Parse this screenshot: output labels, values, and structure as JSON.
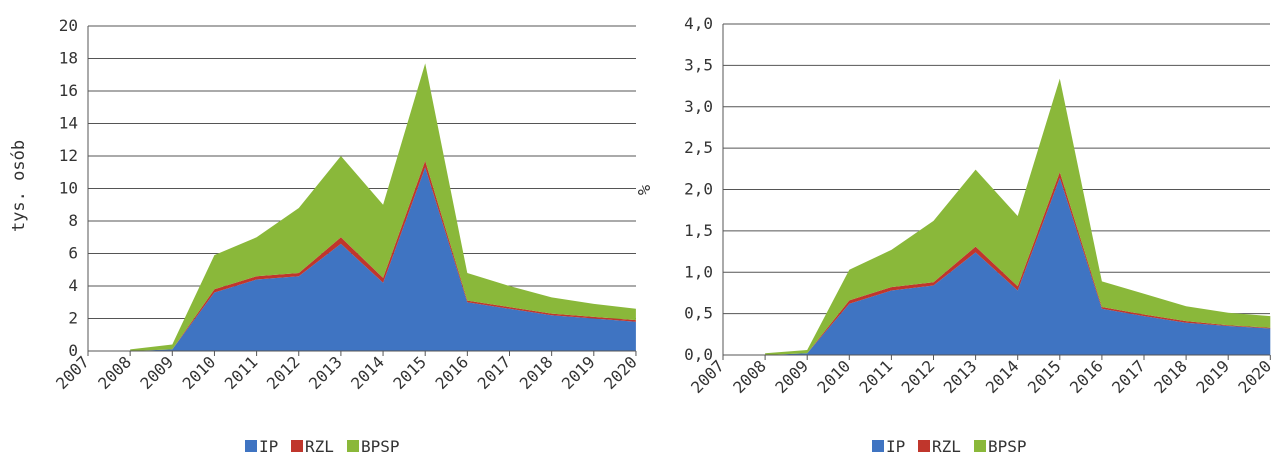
{
  "chart_data": [
    {
      "type": "area",
      "stacked": true,
      "categories": [
        "2007",
        "2008",
        "2009",
        "2010",
        "2011",
        "2012",
        "2013",
        "2014",
        "2015",
        "2016",
        "2017",
        "2018",
        "2019",
        "2020"
      ],
      "ylabel": "tys. osób",
      "ylim": [
        0,
        20
      ],
      "yticks": [
        "0",
        "2",
        "4",
        "6",
        "8",
        "10",
        "12",
        "14",
        "16",
        "18",
        "20"
      ],
      "grid": true,
      "legend_position": "bottom",
      "series": [
        {
          "name": "IP",
          "color": "#3f74c2",
          "values": [
            null,
            0,
            0.1,
            3.6,
            4.4,
            4.6,
            6.6,
            4.2,
            11.3,
            3.0,
            2.6,
            2.2,
            2.0,
            1.8
          ]
        },
        {
          "name": "RZL",
          "color": "#c0362c",
          "values": [
            null,
            0,
            0,
            0.2,
            0.2,
            0.2,
            0.4,
            0.3,
            0.4,
            0.1,
            0.1,
            0.1,
            0.1,
            0.1
          ]
        },
        {
          "name": "BPSP",
          "color": "#8ab83a",
          "values": [
            null,
            0.1,
            0.3,
            2.1,
            2.4,
            4.0,
            5.0,
            4.5,
            6.0,
            1.7,
            1.3,
            1.0,
            0.8,
            0.7
          ]
        }
      ]
    },
    {
      "type": "area",
      "stacked": true,
      "categories": [
        "2007",
        "2008",
        "2009",
        "2010",
        "2011",
        "2012",
        "2013",
        "2014",
        "2015",
        "2016",
        "2017",
        "2018",
        "2019",
        "2020"
      ],
      "ylabel": "%",
      "ylim": [
        0,
        4
      ],
      "yticks": [
        "0,0",
        "0,5",
        "1,0",
        "1,5",
        "2,0",
        "2,5",
        "3,0",
        "3,5",
        "4,0"
      ],
      "grid": true,
      "legend_position": "bottom",
      "series": [
        {
          "name": "IP",
          "color": "#3f74c2",
          "values": [
            null,
            0,
            0.02,
            0.62,
            0.78,
            0.84,
            1.24,
            0.78,
            2.14,
            0.56,
            0.47,
            0.39,
            0.35,
            0.32
          ]
        },
        {
          "name": "RZL",
          "color": "#c0362c",
          "values": [
            null,
            0,
            0,
            0.04,
            0.04,
            0.04,
            0.07,
            0.05,
            0.07,
            0.02,
            0.02,
            0.02,
            0.01,
            0.01
          ]
        },
        {
          "name": "BPSP",
          "color": "#8ab83a",
          "values": [
            null,
            0.02,
            0.04,
            0.37,
            0.45,
            0.74,
            0.93,
            0.85,
            1.13,
            0.31,
            0.25,
            0.18,
            0.15,
            0.14
          ]
        }
      ]
    }
  ]
}
